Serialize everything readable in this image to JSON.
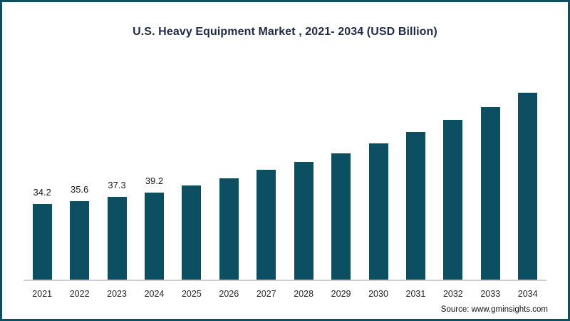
{
  "chart_data": {
    "type": "bar",
    "title": "U.S. Heavy Equipment Market , 2021- 2034 (USD Billion)",
    "categories": [
      "2021",
      "2022",
      "2023",
      "2024",
      "2025",
      "2026",
      "2027",
      "2028",
      "2029",
      "2030",
      "2031",
      "2032",
      "2033",
      "2034"
    ],
    "values": [
      34.2,
      35.6,
      37.3,
      39.2,
      42.6,
      45.8,
      49.7,
      53.2,
      57.1,
      61.6,
      66.8,
      72.3,
      78.1,
      84.5
    ],
    "data_labels": [
      "34.2",
      "35.6",
      "37.3",
      "39.2",
      "",
      "",
      "",
      "",
      "",
      "",
      "",
      "",
      "",
      ""
    ],
    "xlabel": "",
    "ylabel": "",
    "ylim": [
      0,
      95
    ],
    "grid": false,
    "legend": false,
    "bar_color": "#0d4f62",
    "axis_line_color": "#cfcfcf"
  },
  "source": {
    "text": "Source: www.gminsights.com"
  }
}
